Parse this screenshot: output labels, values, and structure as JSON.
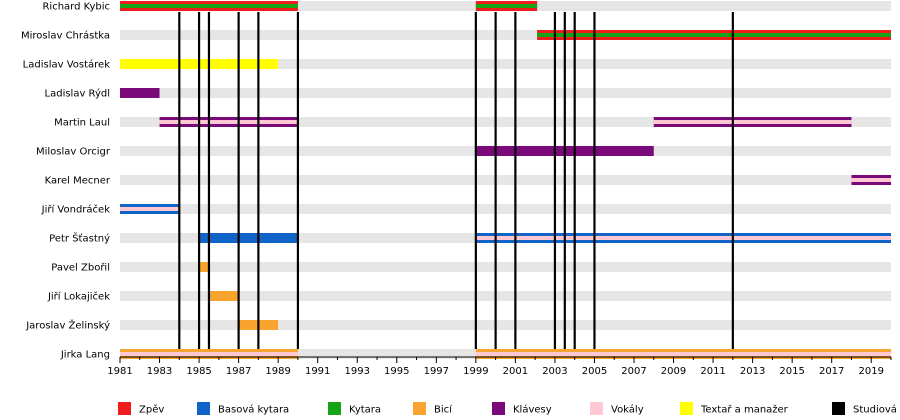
{
  "chart_data": {
    "type": "timeline",
    "title": "",
    "xlabel": "",
    "ylabel": "",
    "xlim": [
      1981,
      2020
    ],
    "x_ticks": [
      "1981",
      "1983",
      "1985",
      "1987",
      "1989",
      "1991",
      "1993",
      "1995",
      "1997",
      "1999",
      "2001",
      "2003",
      "2005",
      "2007",
      "2009",
      "2011",
      "2013",
      "2015",
      "2017",
      "2019"
    ],
    "members": [
      {
        "name": "Richard Kybic",
        "roles": [
          {
            "role": "Zpěv",
            "secondary": "Kytara",
            "start": 1981,
            "end": 1990
          },
          {
            "role": "Zpěv",
            "secondary": "Kytara",
            "start": 1999,
            "end": 2002.1
          }
        ]
      },
      {
        "name": "Miroslav Chrástka",
        "roles": [
          {
            "role": "Zpěv",
            "secondary": "Kytara",
            "start": 2002.1,
            "end": 2020
          }
        ]
      },
      {
        "name": "Ladislav Vostárek",
        "roles": [
          {
            "role": "Textař a manažer",
            "start": 1981,
            "end": 1989
          }
        ]
      },
      {
        "name": "Ladislav Rýdl",
        "roles": [
          {
            "role": "Klávesy",
            "start": 1981,
            "end": 1983
          }
        ]
      },
      {
        "name": "Martin Laul",
        "roles": [
          {
            "role": "Klávesy",
            "secondary": "Vokály",
            "start": 1983,
            "end": 1990
          },
          {
            "role": "Klávesy",
            "secondary": "Vokály",
            "start": 2008,
            "end": 2018
          }
        ]
      },
      {
        "name": "Miloslav Orcigr",
        "roles": [
          {
            "role": "Klávesy",
            "start": 1999,
            "end": 2008
          }
        ]
      },
      {
        "name": "Karel Mecner",
        "roles": [
          {
            "role": "Klávesy",
            "secondary": "Vokály",
            "start": 2018,
            "end": 2020
          }
        ]
      },
      {
        "name": "Jiří Vondráček",
        "roles": [
          {
            "role": "Basová kytara",
            "secondary": "Vokály",
            "start": 1981,
            "end": 1984
          }
        ]
      },
      {
        "name": "Petr Šťastný",
        "roles": [
          {
            "role": "Basová kytara",
            "start": 1985,
            "end": 1990
          },
          {
            "role": "Basová kytara",
            "secondary": "Vokály",
            "start": 1999,
            "end": 2020
          }
        ]
      },
      {
        "name": "Pavel Zbořil",
        "roles": [
          {
            "role": "Bicí",
            "start": 1985,
            "end": 1985.5
          }
        ]
      },
      {
        "name": "Jiří Lokajiček",
        "roles": [
          {
            "role": "Bicí",
            "start": 1985.5,
            "end": 1987
          }
        ]
      },
      {
        "name": "Jaroslav Želinský",
        "roles": [
          {
            "role": "Bicí",
            "start": 1987,
            "end": 1989
          }
        ]
      },
      {
        "name": "Jirka Lang",
        "roles": [
          {
            "role": "Bicí",
            "secondary": "Vokály",
            "start": 1981,
            "end": 1990
          },
          {
            "role": "Bicí",
            "secondary": "Vokály",
            "start": 1999,
            "end": 2020
          }
        ]
      }
    ],
    "studio_albums": [
      1984,
      1985,
      1985.5,
      1987,
      1988,
      1990,
      1999,
      2000,
      2001,
      2003,
      2003.5,
      2004,
      2005,
      2012
    ],
    "legend": [
      {
        "label": "Zpěv",
        "color": "#ee1c1c"
      },
      {
        "label": "Basová kytara",
        "color": "#1064c8"
      },
      {
        "label": "Kytara",
        "color": "#16a316"
      },
      {
        "label": "Bicí",
        "color": "#f8a42f"
      },
      {
        "label": "Klávesy",
        "color": "#7a0a7a"
      },
      {
        "label": "Vokály",
        "color": "#ffc8d2"
      },
      {
        "label": "Textař a manažer",
        "color": "#ffff00"
      },
      {
        "label": "Studiová a",
        "color": "#000000"
      }
    ]
  }
}
